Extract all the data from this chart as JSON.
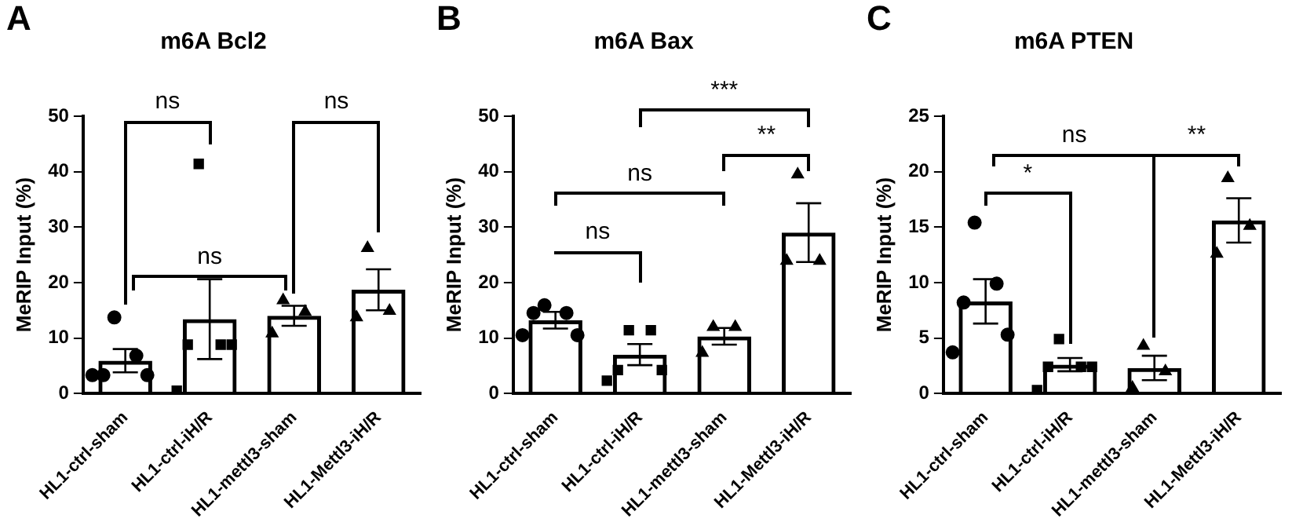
{
  "chart_data": [
    {
      "type": "bar",
      "title": "m6A Bcl2",
      "ylabel": "MeRIP Input (%)",
      "categories": [
        "HL1-ctrl-sham",
        "HL1-ctrl-iH/R",
        "HL1-mettl3-sham",
        "HL1-Mettl3-iH/R"
      ],
      "ylim": [
        0,
        50
      ],
      "yticks": [
        0,
        10,
        20,
        30,
        40,
        50
      ],
      "grid": false,
      "legend": false,
      "annotations": [
        "A",
        "ns",
        "ns",
        "ns"
      ],
      "series": [
        {
          "color": "#000000",
          "values": [
            5.9,
            13.4,
            14.0,
            18.7
          ],
          "errors": [
            2.1,
            7.2,
            1.8,
            3.7
          ]
        },
        {
          "type": "scatter",
          "color": "#000000",
          "marker": "circle",
          "x": [
            "HL1-ctrl-sham",
            "HL1-ctrl-sham",
            "HL1-ctrl-sham",
            "HL1-ctrl-sham",
            "HL1-ctrl-sham"
          ],
          "values": [
            13.7,
            6.8,
            3.3,
            3.3,
            3.3
          ]
        },
        {
          "type": "scatter",
          "color": "#000000",
          "marker": "square",
          "x": [
            "HL1-ctrl-iH/R",
            "HL1-ctrl-iH/R",
            "HL1-ctrl-iH/R",
            "HL1-ctrl-iH/R",
            "HL1-ctrl-iH/R"
          ],
          "values": [
            41.4,
            8.8,
            8.8,
            8.8,
            0.5
          ]
        },
        {
          "type": "scatter",
          "color": "#000000",
          "marker": "triangle",
          "x": [
            "HL1-mettl3-sham",
            "HL1-mettl3-sham",
            "HL1-mettl3-sham"
          ],
          "values": [
            16.8,
            14.7,
            10.8
          ]
        },
        {
          "type": "scatter",
          "color": "#000000",
          "marker": "triangle",
          "x": [
            "HL1-Mettl3-iH/R",
            "HL1-Mettl3-iH/R",
            "HL1-Mettl3-iH/R"
          ],
          "values": [
            26.2,
            14.9,
            13.7
          ]
        }
      ]
    },
    {
      "type": "bar",
      "title": "m6A Bax",
      "ylabel": "MeRIP Input (%)",
      "categories": [
        "HL1-ctrl-sham",
        "HL1-ctrl-iH/R",
        "HL1-mettl3-sham",
        "HL1-Mettl3-iH/R"
      ],
      "ylim": [
        0,
        50
      ],
      "yticks": [
        0,
        10,
        20,
        30,
        40,
        50
      ],
      "grid": false,
      "legend": false,
      "annotations": [
        "B",
        "***",
        "**",
        "ns",
        "ns"
      ],
      "series": [
        {
          "color": "#000000",
          "values": [
            13.2,
            7.0,
            10.3,
            29.0
          ],
          "errors": [
            1.5,
            1.9,
            1.5,
            5.3
          ]
        },
        {
          "type": "scatter",
          "color": "#000000",
          "marker": "circle",
          "x": [
            "HL1-ctrl-sham",
            "HL1-ctrl-sham",
            "HL1-ctrl-sham",
            "HL1-ctrl-sham",
            "HL1-ctrl-sham"
          ],
          "values": [
            15.9,
            14.5,
            14.5,
            10.5,
            10.5
          ]
        },
        {
          "type": "scatter",
          "color": "#000000",
          "marker": "square",
          "x": [
            "HL1-ctrl-iH/R",
            "HL1-ctrl-iH/R",
            "HL1-ctrl-iH/R",
            "HL1-ctrl-iH/R",
            "HL1-ctrl-iH/R"
          ],
          "values": [
            11.4,
            11.4,
            4.2,
            4.2,
            2.3
          ]
        },
        {
          "type": "scatter",
          "color": "#000000",
          "marker": "triangle",
          "x": [
            "HL1-mettl3-sham",
            "HL1-mettl3-sham",
            "HL1-mettl3-sham"
          ],
          "values": [
            12.0,
            12.0,
            7.3
          ]
        },
        {
          "type": "scatter",
          "color": "#000000",
          "marker": "triangle",
          "x": [
            "HL1-Mettl3-iH/R",
            "HL1-Mettl3-iH/R",
            "HL1-Mettl3-iH/R"
          ],
          "values": [
            39.5,
            23.9,
            23.9
          ]
        }
      ]
    },
    {
      "type": "bar",
      "title": "m6A PTEN",
      "ylabel": "MeRIP Input (%)",
      "categories": [
        "HL1-ctrl-sham",
        "HL1-ctrl-iH/R",
        "HL1-mettl3-sham",
        "HL1-Mettl3-iH/R"
      ],
      "ylim": [
        0,
        25
      ],
      "yticks": [
        0,
        5,
        10,
        15,
        20,
        25
      ],
      "grid": false,
      "legend": false,
      "annotations": [
        "C",
        "ns",
        "**",
        "*"
      ],
      "series": [
        {
          "color": "#000000",
          "values": [
            8.3,
            2.6,
            2.3,
            15.6
          ],
          "errors": [
            2.0,
            0.6,
            1.1,
            2.0
          ]
        },
        {
          "type": "scatter",
          "color": "#000000",
          "marker": "circle",
          "x": [
            "HL1-ctrl-sham",
            "HL1-ctrl-sham",
            "HL1-ctrl-sham",
            "HL1-ctrl-sham",
            "HL1-ctrl-sham"
          ],
          "values": [
            15.4,
            9.9,
            8.2,
            5.3,
            3.7
          ]
        },
        {
          "type": "scatter",
          "color": "#000000",
          "marker": "square",
          "x": [
            "HL1-ctrl-iH/R",
            "HL1-ctrl-iH/R",
            "HL1-ctrl-iH/R",
            "HL1-ctrl-iH/R",
            "HL1-ctrl-iH/R"
          ],
          "values": [
            4.9,
            2.4,
            2.4,
            2.4,
            0.3
          ]
        },
        {
          "type": "scatter",
          "color": "#000000",
          "marker": "triangle",
          "x": [
            "HL1-mettl3-sham",
            "HL1-mettl3-sham",
            "HL1-mettl3-sham"
          ],
          "values": [
            4.3,
            2.0,
            0.5
          ]
        },
        {
          "type": "scatter",
          "color": "#000000",
          "marker": "triangle",
          "x": [
            "HL1-Mettl3-iH/R",
            "HL1-Mettl3-iH/R",
            "HL1-Mettl3-iH/R"
          ],
          "values": [
            19.4,
            15.1,
            12.6
          ]
        }
      ]
    }
  ]
}
